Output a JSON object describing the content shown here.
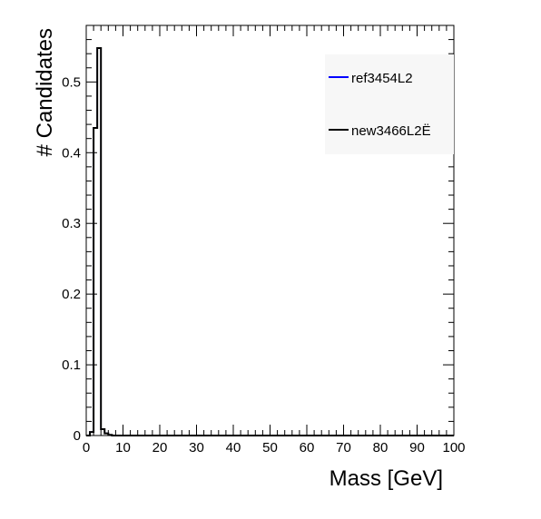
{
  "chart_data": {
    "type": "histogram",
    "title": "",
    "xlabel": "Mass [GeV]",
    "ylabel": "# Candidates",
    "xlim": [
      0,
      100
    ],
    "ylim": [
      0,
      0.58
    ],
    "x_ticks": [
      0,
      10,
      20,
      30,
      40,
      50,
      60,
      70,
      80,
      90,
      100
    ],
    "y_ticks": [
      0,
      0.1,
      0.2,
      0.3,
      0.4,
      0.5
    ],
    "y_tick_labels": [
      "0",
      "0.1",
      "0.2",
      "0.3",
      "0.4",
      "0.5"
    ],
    "legend_position": "top-right",
    "series": [
      {
        "name": "ref3454L2",
        "color": "#0000ff",
        "bin_edges": [
          0,
          1,
          2,
          3,
          4,
          5,
          6,
          7,
          100
        ],
        "values": [
          0,
          0.005,
          0.435,
          0.548,
          0.009,
          0.003,
          0.001,
          0
        ]
      },
      {
        "name": "new3466L2Ë",
        "color": "#000000",
        "bin_edges": [
          0,
          1,
          2,
          3,
          4,
          5,
          6,
          7,
          100
        ],
        "values": [
          0,
          0.005,
          0.435,
          0.548,
          0.009,
          0.003,
          0.001,
          0
        ]
      }
    ]
  }
}
